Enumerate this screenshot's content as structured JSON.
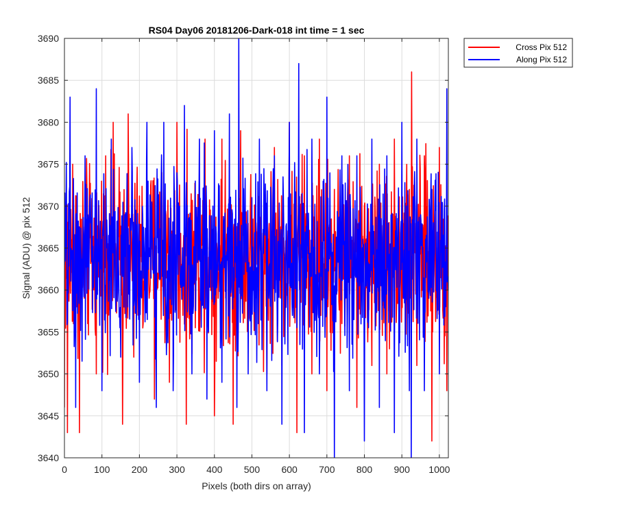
{
  "chart_data": {
    "type": "line",
    "title": "RS04 Day06 20181206-Dark-018 int time = 1 sec",
    "xlabel": "Pixels (both dirs on array)",
    "ylabel": "Signal (ADU) @ pix 512",
    "xlim": [
      0,
      1024
    ],
    "ylim": [
      3640,
      3690
    ],
    "xticks": [
      0,
      100,
      200,
      300,
      400,
      500,
      600,
      700,
      800,
      900,
      1000
    ],
    "yticks": [
      3640,
      3645,
      3650,
      3655,
      3660,
      3665,
      3670,
      3675,
      3680,
      3685,
      3690
    ],
    "grid": true,
    "legend": "outside-top-right",
    "series": [
      {
        "name": "Cross Pix 512",
        "color": "#ff0000",
        "mean": 3664,
        "x": [
          0,
          8,
          22,
          40,
          60,
          85,
          110,
          130,
          155,
          170,
          185,
          210,
          240,
          260,
          280,
          300,
          325,
          350,
          375,
          400,
          420,
          450,
          470,
          500,
          520,
          540,
          560,
          580,
          600,
          620,
          640,
          660,
          680,
          700,
          720,
          740,
          760,
          780,
          800,
          820,
          840,
          860,
          880,
          900,
          920,
          926,
          940,
          960,
          980,
          1000,
          1020
        ],
        "y": [
          3646,
          3643,
          3675,
          3643,
          3672,
          3650,
          3676,
          3680,
          3644,
          3681,
          3652,
          3656,
          3647,
          3674,
          3649,
          3680,
          3644,
          3660,
          3678,
          3645,
          3678,
          3644,
          3679,
          3660,
          3672,
          3650,
          3677,
          3651,
          3680,
          3643,
          3676,
          3650,
          3678,
          3648,
          3672,
          3656,
          3676,
          3646,
          3670,
          3651,
          3675,
          3650,
          3678,
          3660,
          3672,
          3686,
          3651,
          3676,
          3642,
          3677,
          3648
        ]
      },
      {
        "name": "Along Pix 512",
        "color": "#0000ff",
        "mean": 3664,
        "x": [
          0,
          15,
          30,
          55,
          85,
          100,
          125,
          150,
          180,
          200,
          220,
          245,
          265,
          290,
          320,
          340,
          360,
          380,
          400,
          420,
          440,
          460,
          465,
          490,
          520,
          540,
          560,
          580,
          600,
          625,
          640,
          660,
          680,
          700,
          720,
          740,
          760,
          780,
          800,
          820,
          840,
          860,
          880,
          900,
          920,
          925,
          940,
          960,
          980,
          1000,
          1020
        ],
        "y": [
          3663,
          3683,
          3646,
          3676,
          3684,
          3648,
          3678,
          3652,
          3677,
          3649,
          3680,
          3646,
          3680,
          3648,
          3682,
          3650,
          3678,
          3647,
          3679,
          3649,
          3681,
          3646,
          3690,
          3650,
          3678,
          3648,
          3676,
          3644,
          3680,
          3687,
          3643,
          3678,
          3650,
          3683,
          3640,
          3676,
          3648,
          3676,
          3642,
          3678,
          3646,
          3676,
          3643,
          3680,
          3648,
          3640,
          3678,
          3648,
          3672,
          3650,
          3684
        ]
      }
    ]
  }
}
